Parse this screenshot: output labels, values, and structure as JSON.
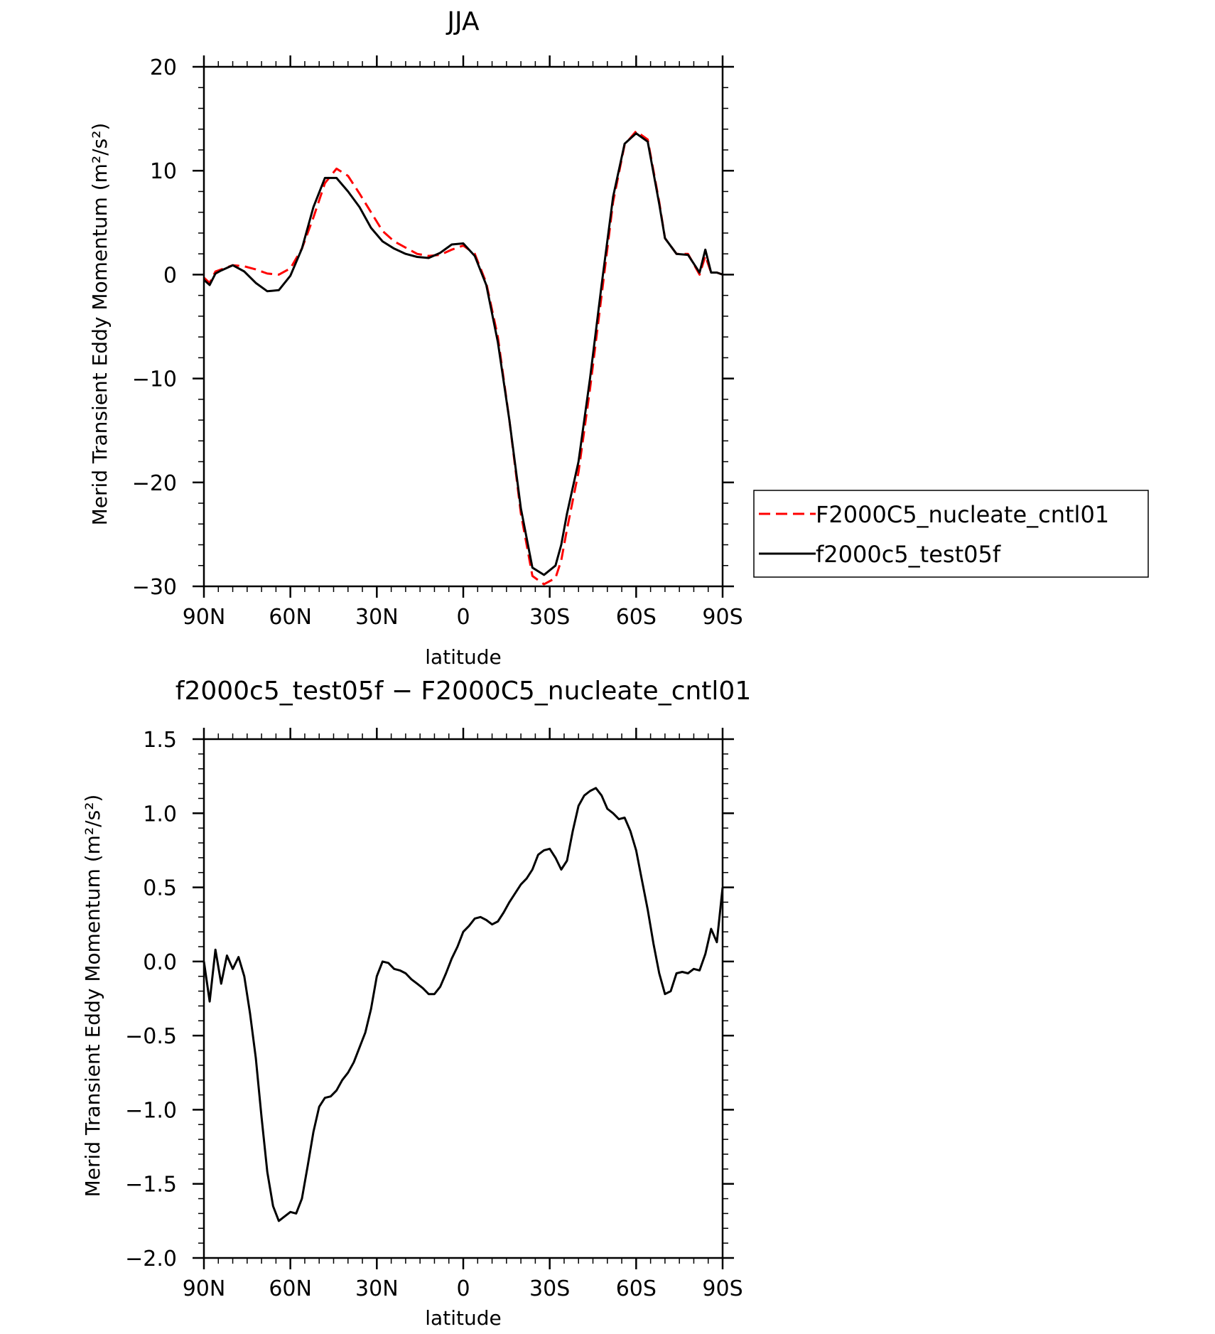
{
  "chart_data": [
    {
      "type": "line",
      "title": "JJA",
      "xlabel": "latitude",
      "ylabel": "Merid Transient Eddy Momentum (m²/s²)",
      "xlim": [
        -90,
        90
      ],
      "ylim": [
        -30,
        20
      ],
      "xticks": [
        -90,
        -60,
        -30,
        0,
        30,
        60,
        90
      ],
      "xtick_labels": [
        "90N",
        "60N",
        "30N",
        "0",
        "30S",
        "60S",
        "90S"
      ],
      "yticks": [
        -30,
        -20,
        -10,
        0,
        10,
        20
      ],
      "ytick_labels": [
        "−30",
        "−20",
        "−10",
        "0",
        "10",
        "20"
      ],
      "legend_placement": "right",
      "series": [
        {
          "name": "F2000C5_nucleate_cntl01",
          "color": "#ff0000",
          "dash": "dashed",
          "x": [
            -90,
            -88,
            -86,
            -84,
            -80,
            -76,
            -72,
            -68,
            -64,
            -60,
            -56,
            -52,
            -48,
            -44,
            -40,
            -36,
            -32,
            -28,
            -24,
            -20,
            -16,
            -12,
            -8,
            -4,
            0,
            4,
            8,
            12,
            16,
            20,
            24,
            28,
            32,
            34,
            36,
            40,
            44,
            48,
            52,
            56,
            60,
            64,
            66,
            68,
            70,
            74,
            78,
            82,
            84,
            86,
            88,
            90
          ],
          "y": [
            -0.3,
            -0.8,
            0.3,
            0.5,
            0.9,
            0.8,
            0.5,
            0.1,
            0.0,
            0.6,
            2.5,
            5.5,
            8.8,
            10.2,
            9.5,
            7.8,
            6.0,
            4.2,
            3.2,
            2.6,
            2.0,
            1.8,
            1.9,
            2.4,
            2.8,
            2.0,
            -0.8,
            -6.0,
            -14.0,
            -23.0,
            -29.0,
            -29.8,
            -29.2,
            -27.5,
            -24.5,
            -19.0,
            -11.0,
            -2.0,
            7.0,
            12.5,
            13.8,
            13.0,
            10.0,
            7.0,
            3.5,
            2.0,
            2.0,
            0.0,
            1.8,
            0.2,
            0.2,
            0.0
          ]
        },
        {
          "name": "f2000c5_test05f",
          "color": "#000000",
          "dash": "solid",
          "x": [
            -90,
            -88,
            -86,
            -84,
            -80,
            -76,
            -72,
            -68,
            -64,
            -60,
            -56,
            -52,
            -48,
            -44,
            -40,
            -36,
            -32,
            -28,
            -24,
            -20,
            -16,
            -12,
            -8,
            -4,
            0,
            4,
            8,
            12,
            16,
            20,
            24,
            28,
            32,
            34,
            36,
            40,
            44,
            48,
            52,
            56,
            60,
            64,
            66,
            68,
            70,
            74,
            78,
            82,
            84,
            86,
            88,
            90
          ],
          "y": [
            -0.5,
            -1.0,
            0.1,
            0.4,
            0.9,
            0.3,
            -0.8,
            -1.6,
            -1.5,
            -0.1,
            2.5,
            6.5,
            9.3,
            9.3,
            8.0,
            6.5,
            4.5,
            3.2,
            2.5,
            2.0,
            1.7,
            1.6,
            2.1,
            2.9,
            3.0,
            1.8,
            -1.0,
            -6.5,
            -14.0,
            -22.5,
            -28.2,
            -28.9,
            -28.0,
            -26.0,
            -23.0,
            -18.0,
            -10.0,
            -1.0,
            7.5,
            12.6,
            13.6,
            12.8,
            9.8,
            6.8,
            3.5,
            2.0,
            1.9,
            0.2,
            2.4,
            0.2,
            0.2,
            0.0
          ]
        }
      ]
    },
    {
      "type": "line",
      "title": "f2000c5_test05f − F2000C5_nucleate_cntl01",
      "xlabel": "latitude",
      "ylabel": "Merid Transient Eddy Momentum (m²/s²)",
      "xlim": [
        -90,
        90
      ],
      "ylim": [
        -2.0,
        1.5
      ],
      "xticks": [
        -90,
        -60,
        -30,
        0,
        30,
        60,
        90
      ],
      "xtick_labels": [
        "90N",
        "60N",
        "30N",
        "0",
        "30S",
        "60S",
        "90S"
      ],
      "yticks": [
        -2.0,
        -1.5,
        -1.0,
        -0.5,
        0.0,
        0.5,
        1.0,
        1.5
      ],
      "ytick_labels": [
        "−2.0",
        "−1.5",
        "−1.0",
        "−0.5",
        "0.0",
        "0.5",
        "1.0",
        "1.5"
      ],
      "series": [
        {
          "color": "#000000",
          "dash": "solid",
          "x": [
            -90,
            -88,
            -86,
            -84,
            -82,
            -80,
            -78,
            -76,
            -74,
            -72,
            -70,
            -68,
            -66,
            -64,
            -62,
            -60,
            -58,
            -56,
            -54,
            -52,
            -50,
            -48,
            -46,
            -44,
            -42,
            -40,
            -38,
            -36,
            -34,
            -32,
            -30,
            -28,
            -26,
            -24,
            -22,
            -20,
            -18,
            -16,
            -14,
            -12,
            -10,
            -8,
            -6,
            -4,
            -2,
            0,
            2,
            4,
            6,
            8,
            10,
            12,
            14,
            16,
            18,
            20,
            22,
            24,
            26,
            28,
            30,
            32,
            34,
            36,
            38,
            40,
            42,
            44,
            46,
            48,
            50,
            52,
            54,
            56,
            58,
            60,
            62,
            64,
            66,
            68,
            70,
            72,
            74,
            76,
            78,
            80,
            82,
            84,
            86,
            88,
            90
          ],
          "y": [
            0.0,
            -0.27,
            0.08,
            -0.15,
            0.04,
            -0.05,
            0.03,
            -0.1,
            -0.35,
            -0.65,
            -1.05,
            -1.42,
            -1.65,
            -1.75,
            -1.72,
            -1.69,
            -1.7,
            -1.6,
            -1.38,
            -1.15,
            -0.98,
            -0.92,
            -0.91,
            -0.87,
            -0.8,
            -0.75,
            -0.68,
            -0.58,
            -0.48,
            -0.32,
            -0.1,
            0.0,
            -0.01,
            -0.05,
            -0.06,
            -0.08,
            -0.12,
            -0.15,
            -0.18,
            -0.22,
            -0.22,
            -0.17,
            -0.08,
            0.02,
            0.1,
            0.2,
            0.24,
            0.29,
            0.3,
            0.28,
            0.25,
            0.27,
            0.33,
            0.4,
            0.46,
            0.52,
            0.56,
            0.62,
            0.72,
            0.75,
            0.76,
            0.7,
            0.62,
            0.68,
            0.88,
            1.05,
            1.12,
            1.15,
            1.17,
            1.12,
            1.03,
            1.0,
            0.96,
            0.97,
            0.88,
            0.75,
            0.55,
            0.35,
            0.12,
            -0.08,
            -0.22,
            -0.2,
            -0.08,
            -0.07,
            -0.08,
            -0.05,
            -0.06,
            0.05,
            0.22,
            0.13,
            0.5
          ]
        }
      ]
    }
  ],
  "legend": {
    "items": [
      {
        "label": "F2000C5_nucleate_cntl01",
        "color": "#ff0000",
        "dash": "dashed"
      },
      {
        "label": "f2000c5_test05f",
        "color": "#000000",
        "dash": "solid"
      }
    ]
  }
}
